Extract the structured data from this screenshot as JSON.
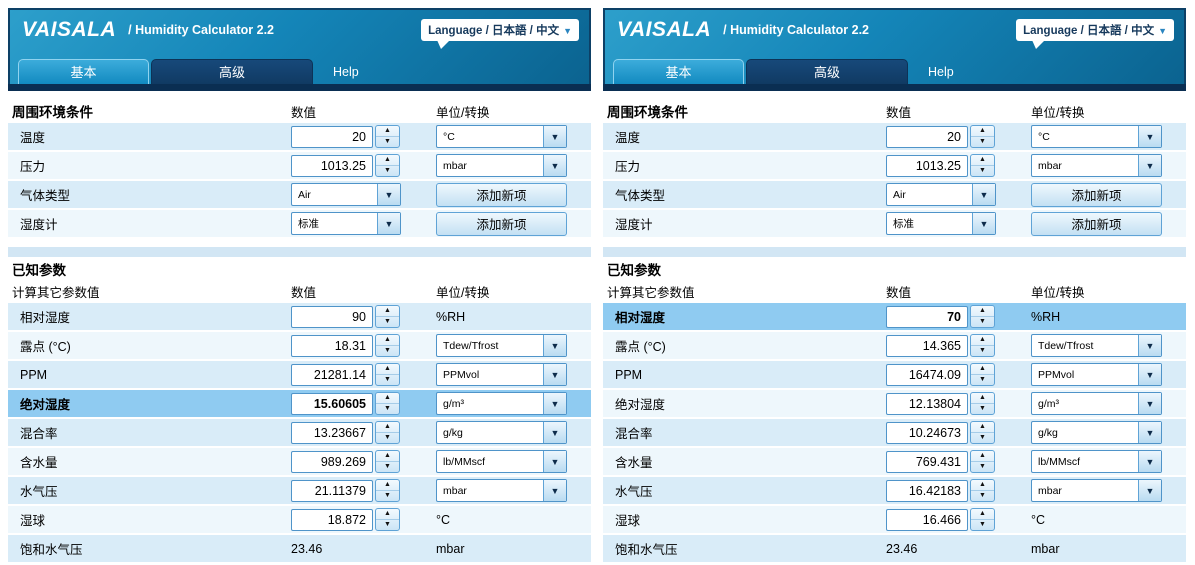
{
  "brand": {
    "logo": "VAISALA",
    "title": "/ Humidity Calculator 2.2",
    "language": "Language / 日本語 / 中文"
  },
  "tabs": {
    "basic": "基本",
    "advanced": "高级",
    "help": "Help"
  },
  "columns": {
    "value": "数值",
    "unit": "单位/转换"
  },
  "colors": {
    "header_blue": "#1485b8",
    "header_navy": "#0a2e52",
    "active_tab": "#128ac0",
    "row_light": "#d9ecf8",
    "row_lighter": "#eef7fc",
    "highlight_row": "#8fcbf1"
  },
  "panels": [
    {
      "ambient": {
        "title": "周围环境条件",
        "rows": [
          {
            "label": "温度",
            "value": "20",
            "unit": "°C"
          },
          {
            "label": "压力",
            "value": "1013.25",
            "unit": "mbar"
          },
          {
            "label": "气体类型",
            "value": "Air",
            "action": "添加新项"
          },
          {
            "label": "湿度计",
            "value": "标准",
            "action": "添加新项"
          }
        ]
      },
      "known": {
        "title": "已知参数",
        "subtitle": "计算其它参数值",
        "rows": [
          {
            "label": "相对湿度",
            "value": "90",
            "unit": "%RH"
          },
          {
            "label": "露点 (°C)",
            "value": "18.31",
            "unit": "Tdew/Tfrost"
          },
          {
            "label": "PPM",
            "value": "21281.14",
            "unit": "PPMvol"
          },
          {
            "label": "绝对湿度",
            "value": "15.60605",
            "unit": "g/m³"
          },
          {
            "label": "混合率",
            "value": "13.23667",
            "unit": "g/kg"
          },
          {
            "label": "含水量",
            "value": "989.269",
            "unit": "lb/MMscf"
          },
          {
            "label": "水气压",
            "value": "21.11379",
            "unit": "mbar"
          },
          {
            "label": "湿球",
            "value": "18.872",
            "unit": "°C"
          },
          {
            "label": "饱和水气压",
            "value": "23.46",
            "unit": "mbar"
          }
        ]
      }
    },
    {
      "ambient": {
        "title": "周围环境条件",
        "rows": [
          {
            "label": "温度",
            "value": "20",
            "unit": "°C"
          },
          {
            "label": "压力",
            "value": "1013.25",
            "unit": "mbar"
          },
          {
            "label": "气体类型",
            "value": "Air",
            "action": "添加新项"
          },
          {
            "label": "湿度计",
            "value": "标准",
            "action": "添加新项"
          }
        ]
      },
      "known": {
        "title": "已知参数",
        "subtitle": "计算其它参数值",
        "rows": [
          {
            "label": "相对湿度",
            "value": "70",
            "unit": "%RH"
          },
          {
            "label": "露点 (°C)",
            "value": "14.365",
            "unit": "Tdew/Tfrost"
          },
          {
            "label": "PPM",
            "value": "16474.09",
            "unit": "PPMvol"
          },
          {
            "label": "绝对湿度",
            "value": "12.13804",
            "unit": "g/m³"
          },
          {
            "label": "混合率",
            "value": "10.24673",
            "unit": "g/kg"
          },
          {
            "label": "含水量",
            "value": "769.431",
            "unit": "lb/MMscf"
          },
          {
            "label": "水气压",
            "value": "16.42183",
            "unit": "mbar"
          },
          {
            "label": "湿球",
            "value": "16.466",
            "unit": "°C"
          },
          {
            "label": "饱和水气压",
            "value": "23.46",
            "unit": "mbar"
          }
        ]
      }
    }
  ]
}
